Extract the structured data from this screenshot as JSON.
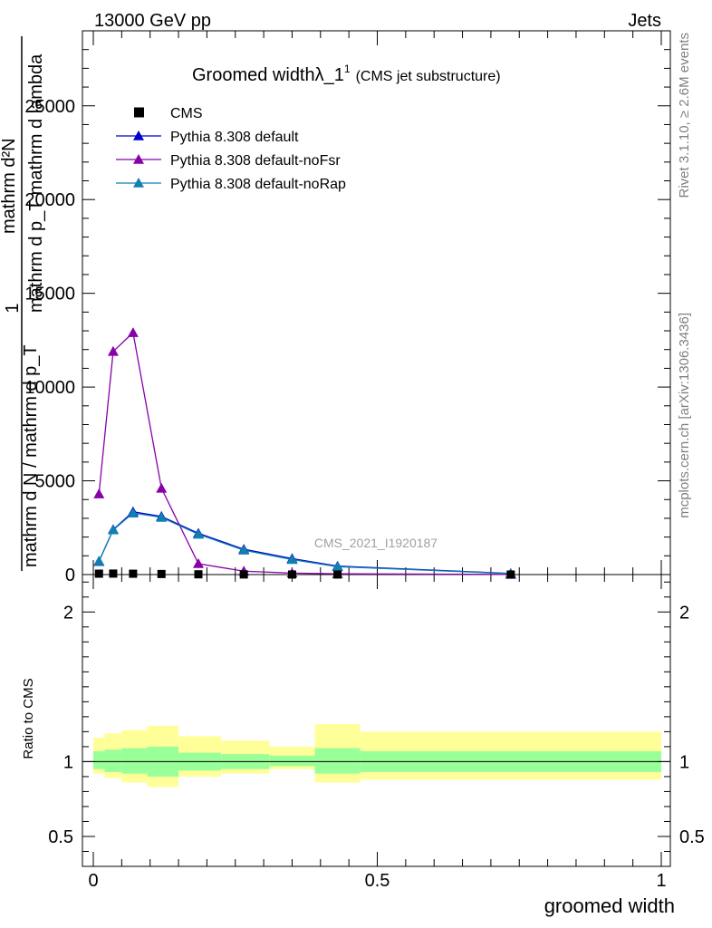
{
  "header": {
    "left": "13000 GeV pp",
    "right": "Jets"
  },
  "side_labels": {
    "rivet": "Rivet 3.1.10, ≥ 2.6M events",
    "mcplots": "mcplots.cern.ch [arXiv:1306.3436]"
  },
  "watermark": "CMS_2021_I1920187",
  "chart_data": [
    {
      "type": "line",
      "title": "Groomed widthλ_1",
      "title_sup": "1",
      "subtitle": "(CMS jet substructure)",
      "ylabel_top_main": "mathrm d²N",
      "ylabel_top_sub": "mathrm d p_T mathrm d lambda",
      "ylabel_bottom_main": "mathrm d N / mathrm d p_T",
      "ylabel_one": "1",
      "xlim": [
        0,
        1
      ],
      "ylim": [
        0,
        29000
      ],
      "y_ticks": [
        0,
        5000,
        10000,
        15000,
        20000,
        25000
      ],
      "y_tick_labels": [
        "0",
        "5000",
        "10000",
        "15000",
        "20000",
        "25000"
      ],
      "legend_position": "top-left",
      "series": [
        {
          "name": "CMS",
          "marker": "square",
          "color": "#000000",
          "x": [
            0.01,
            0.035,
            0.07,
            0.12,
            0.185,
            0.265,
            0.35,
            0.43,
            0.735
          ],
          "y": [
            48,
            52,
            45,
            30,
            14,
            6,
            3,
            2,
            1
          ]
        },
        {
          "name": "Pythia 8.308 default",
          "marker": "triangle",
          "color": "#0000cc",
          "x": [
            0.01,
            0.035,
            0.07,
            0.12,
            0.185,
            0.265,
            0.35,
            0.43,
            0.735
          ],
          "y": [
            700,
            2400,
            3350,
            3100,
            2200,
            1350,
            850,
            450,
            60
          ]
        },
        {
          "name": "Pythia 8.308 default-noFsr",
          "marker": "triangle",
          "color": "#8800aa",
          "x": [
            0.01,
            0.035,
            0.07,
            0.12,
            0.185,
            0.265,
            0.35,
            0.43,
            0.735
          ],
          "y": [
            4300,
            11900,
            12900,
            4600,
            580,
            180,
            80,
            40,
            10
          ]
        },
        {
          "name": "Pythia 8.308 default-noRap",
          "marker": "triangle",
          "color": "#1080b0",
          "x": [
            0.01,
            0.035,
            0.07,
            0.12,
            0.185,
            0.265,
            0.35,
            0.43,
            0.735
          ],
          "y": [
            720,
            2380,
            3280,
            3050,
            2150,
            1300,
            800,
            420,
            50
          ]
        }
      ]
    },
    {
      "type": "area",
      "ylabel": "Ratio to CMS",
      "xlabel": "groomed width",
      "xlim": [
        0,
        1
      ],
      "ylim": [
        0.3,
        2.25
      ],
      "y_ticks": [
        0.5,
        1,
        2
      ],
      "y_tick_labels": [
        "0.5",
        "1",
        "2"
      ],
      "x_ticks": [
        0,
        0.5,
        1
      ],
      "x_tick_labels": [
        "0",
        "0.5",
        "1"
      ],
      "inner_band_color": "#99ff99",
      "outer_band_color": "#ffff99",
      "bins": [
        {
          "lo": 0.0,
          "hi": 0.02,
          "inner": [
            0.95,
            1.07
          ],
          "outer": [
            0.92,
            1.16
          ]
        },
        {
          "lo": 0.02,
          "hi": 0.05,
          "inner": [
            0.93,
            1.08
          ],
          "outer": [
            0.89,
            1.19
          ]
        },
        {
          "lo": 0.05,
          "hi": 0.095,
          "inner": [
            0.92,
            1.09
          ],
          "outer": [
            0.86,
            1.21
          ]
        },
        {
          "lo": 0.095,
          "hi": 0.15,
          "inner": [
            0.9,
            1.1
          ],
          "outer": [
            0.83,
            1.24
          ]
        },
        {
          "lo": 0.15,
          "hi": 0.225,
          "inner": [
            0.94,
            1.06
          ],
          "outer": [
            0.9,
            1.17
          ]
        },
        {
          "lo": 0.225,
          "hi": 0.31,
          "inner": [
            0.95,
            1.05
          ],
          "outer": [
            0.92,
            1.14
          ]
        },
        {
          "lo": 0.31,
          "hi": 0.39,
          "inner": [
            0.97,
            1.04
          ],
          "outer": [
            0.95,
            1.1
          ]
        },
        {
          "lo": 0.39,
          "hi": 0.47,
          "inner": [
            0.92,
            1.09
          ],
          "outer": [
            0.86,
            1.25
          ]
        },
        {
          "lo": 0.47,
          "hi": 1.0,
          "inner": [
            0.93,
            1.07
          ],
          "outer": [
            0.88,
            1.2
          ]
        }
      ]
    }
  ]
}
